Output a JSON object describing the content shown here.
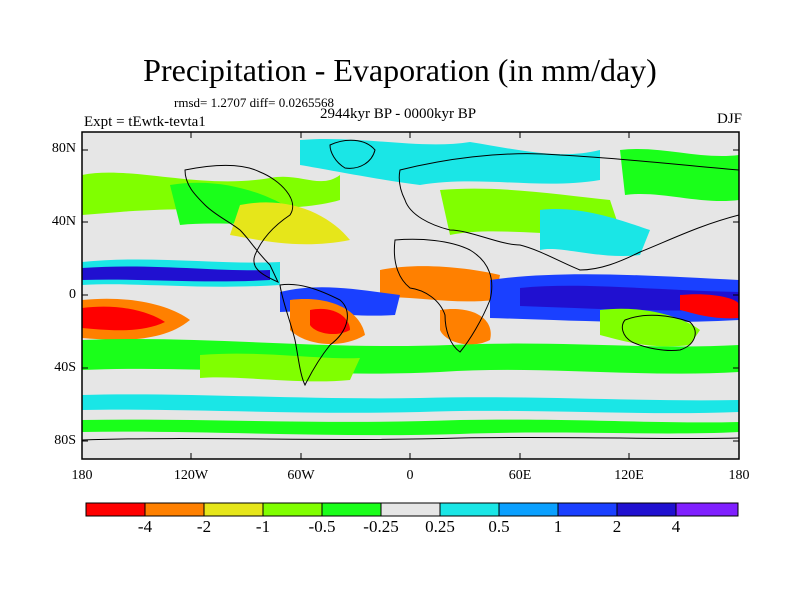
{
  "title": "Precipitation - Evaporation (in mm/day)",
  "stats": "rmsd= 1.2707 diff= 0.0265568",
  "period": "2944kyr BP - 0000kyr BP",
  "experiment": "Expt = tEwtk-tevta1",
  "season": "DJF",
  "lat_labels": [
    "80N",
    "40N",
    "0",
    "40S",
    "80S"
  ],
  "lon_labels": [
    "180",
    "120W",
    "60W",
    "0",
    "60E",
    "120E",
    "180"
  ],
  "colorbar": {
    "labels": [
      "-4",
      "-2",
      "-1",
      "-0.5",
      "-0.25",
      "0.25",
      "0.5",
      "1",
      "2",
      "4"
    ],
    "colors": [
      "#ff0000",
      "#ff8000",
      "#e6e61a",
      "#80ff00",
      "#1aff1a",
      "#e6e6e6",
      "#1ae6e6",
      "#0aa0ff",
      "#1a40ff",
      "#2010d0",
      "#8020ff"
    ]
  }
}
